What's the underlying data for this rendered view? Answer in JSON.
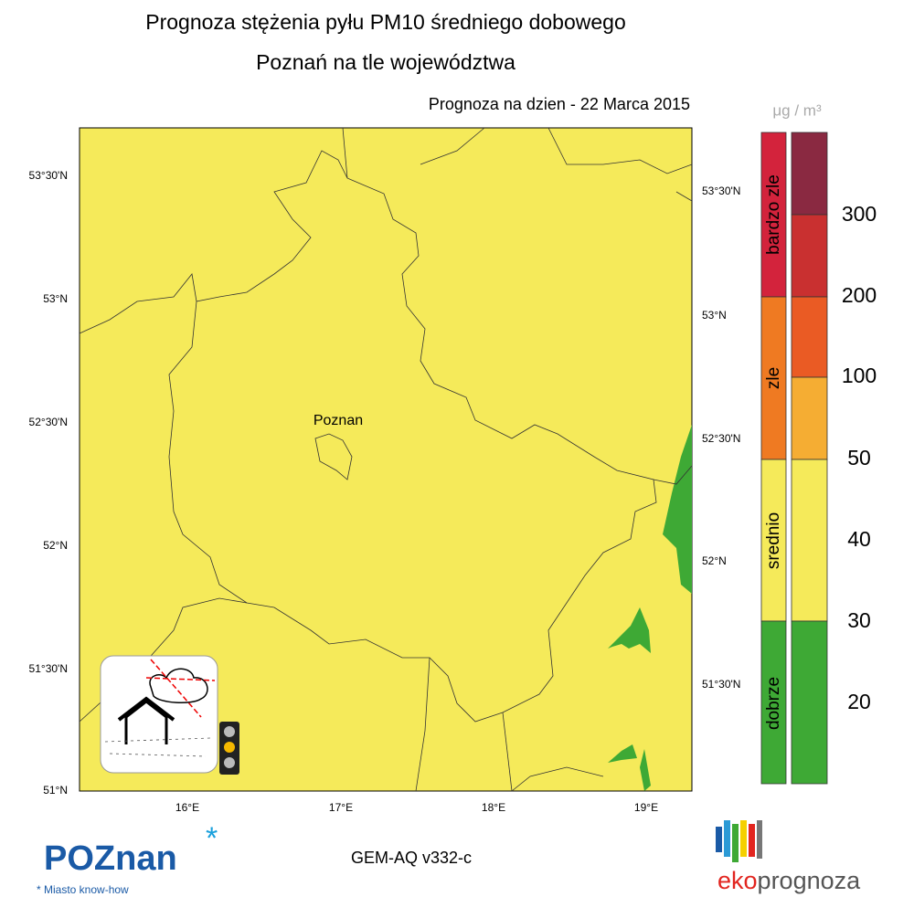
{
  "header": {
    "title": [
      "Prognoza stężenia pyłu PM10 średniego dobowego",
      "Poznań na tle województwa"
    ],
    "date": "Prognoza na dzien -  22 Marca 2015"
  },
  "map": {
    "left_lat_labels": [
      "53°30'N",
      "53°N",
      "52°30'N",
      "52°N",
      "51°30'N",
      "51°N"
    ],
    "right_lat_labels": [
      "53°30'N",
      "53°N",
      "52°30'N",
      "52°N",
      "51°30'N"
    ],
    "lon_labels": [
      "16°E",
      "17°E",
      "18°E",
      "19°E"
    ],
    "city": "Poznan"
  },
  "legend": {
    "unit": "μg / m³",
    "categories": [
      "bardzo zle",
      "zle",
      "srednio",
      "dobrze"
    ],
    "levels": [
      300,
      200,
      100,
      50,
      40,
      30,
      20
    ]
  },
  "footer": {
    "model": "GEM-AQ v332-c",
    "logo": "POZnan",
    "tagline": "* Miasto know-how",
    "brand_prefix": "eko",
    "brand_suffix": "prognoza"
  }
}
